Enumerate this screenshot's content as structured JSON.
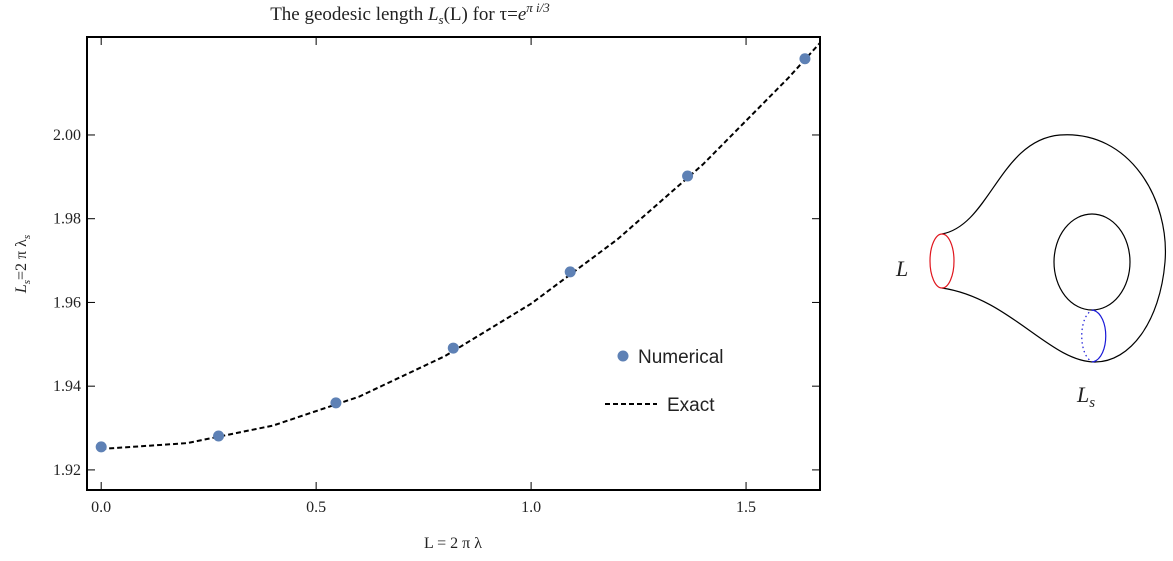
{
  "chart_data": {
    "type": "scatter",
    "title": [
      "The geodesic length ",
      "L",
      "s",
      "(L) for τ=",
      "e",
      "π i/3"
    ],
    "x_label": "L = 2 π λ",
    "y_label": [
      "L",
      "s",
      "=2 π λ",
      "s"
    ],
    "xlim": [
      -0.033,
      1.672
    ],
    "ylim": [
      1.9152,
      2.0234
    ],
    "xticks": [
      {
        "value": 0,
        "label": "0.0"
      },
      {
        "value": 0.5,
        "label": "0.5"
      },
      {
        "value": 1,
        "label": "1.0"
      },
      {
        "value": 1.5,
        "label": "1.5"
      }
    ],
    "yticks": [
      1.92,
      1.94,
      1.96,
      1.98,
      {
        "value": 2,
        "label": "2.00"
      }
    ],
    "grid": false,
    "legend": "right",
    "series": [
      {
        "name": "Numerical",
        "type": "scatter",
        "color": "#5e81b5",
        "x": [
          0,
          0.273,
          0.546,
          0.819,
          1.091,
          1.364,
          1.637
        ],
        "values": [
          1.9255,
          1.9281,
          1.936,
          1.9491,
          1.9673,
          1.9902,
          2.0182
        ]
      },
      {
        "name": "Exact",
        "type": "line",
        "color": "#000000",
        "dashed": true,
        "x": [
          0,
          0.2,
          0.4,
          0.6,
          0.8,
          1.0,
          1.2,
          1.4,
          1.6,
          1.672
        ],
        "values": [
          1.925,
          1.9264,
          1.9306,
          1.9375,
          1.9472,
          1.9597,
          1.975,
          1.993,
          2.0138,
          2.022
        ]
      }
    ]
  },
  "diagram": {
    "labels": [
      {
        "text": "L",
        "color": "#e0161e"
      },
      {
        "text": "L",
        "sub": "s",
        "color": "#1a1ad8"
      }
    ]
  }
}
